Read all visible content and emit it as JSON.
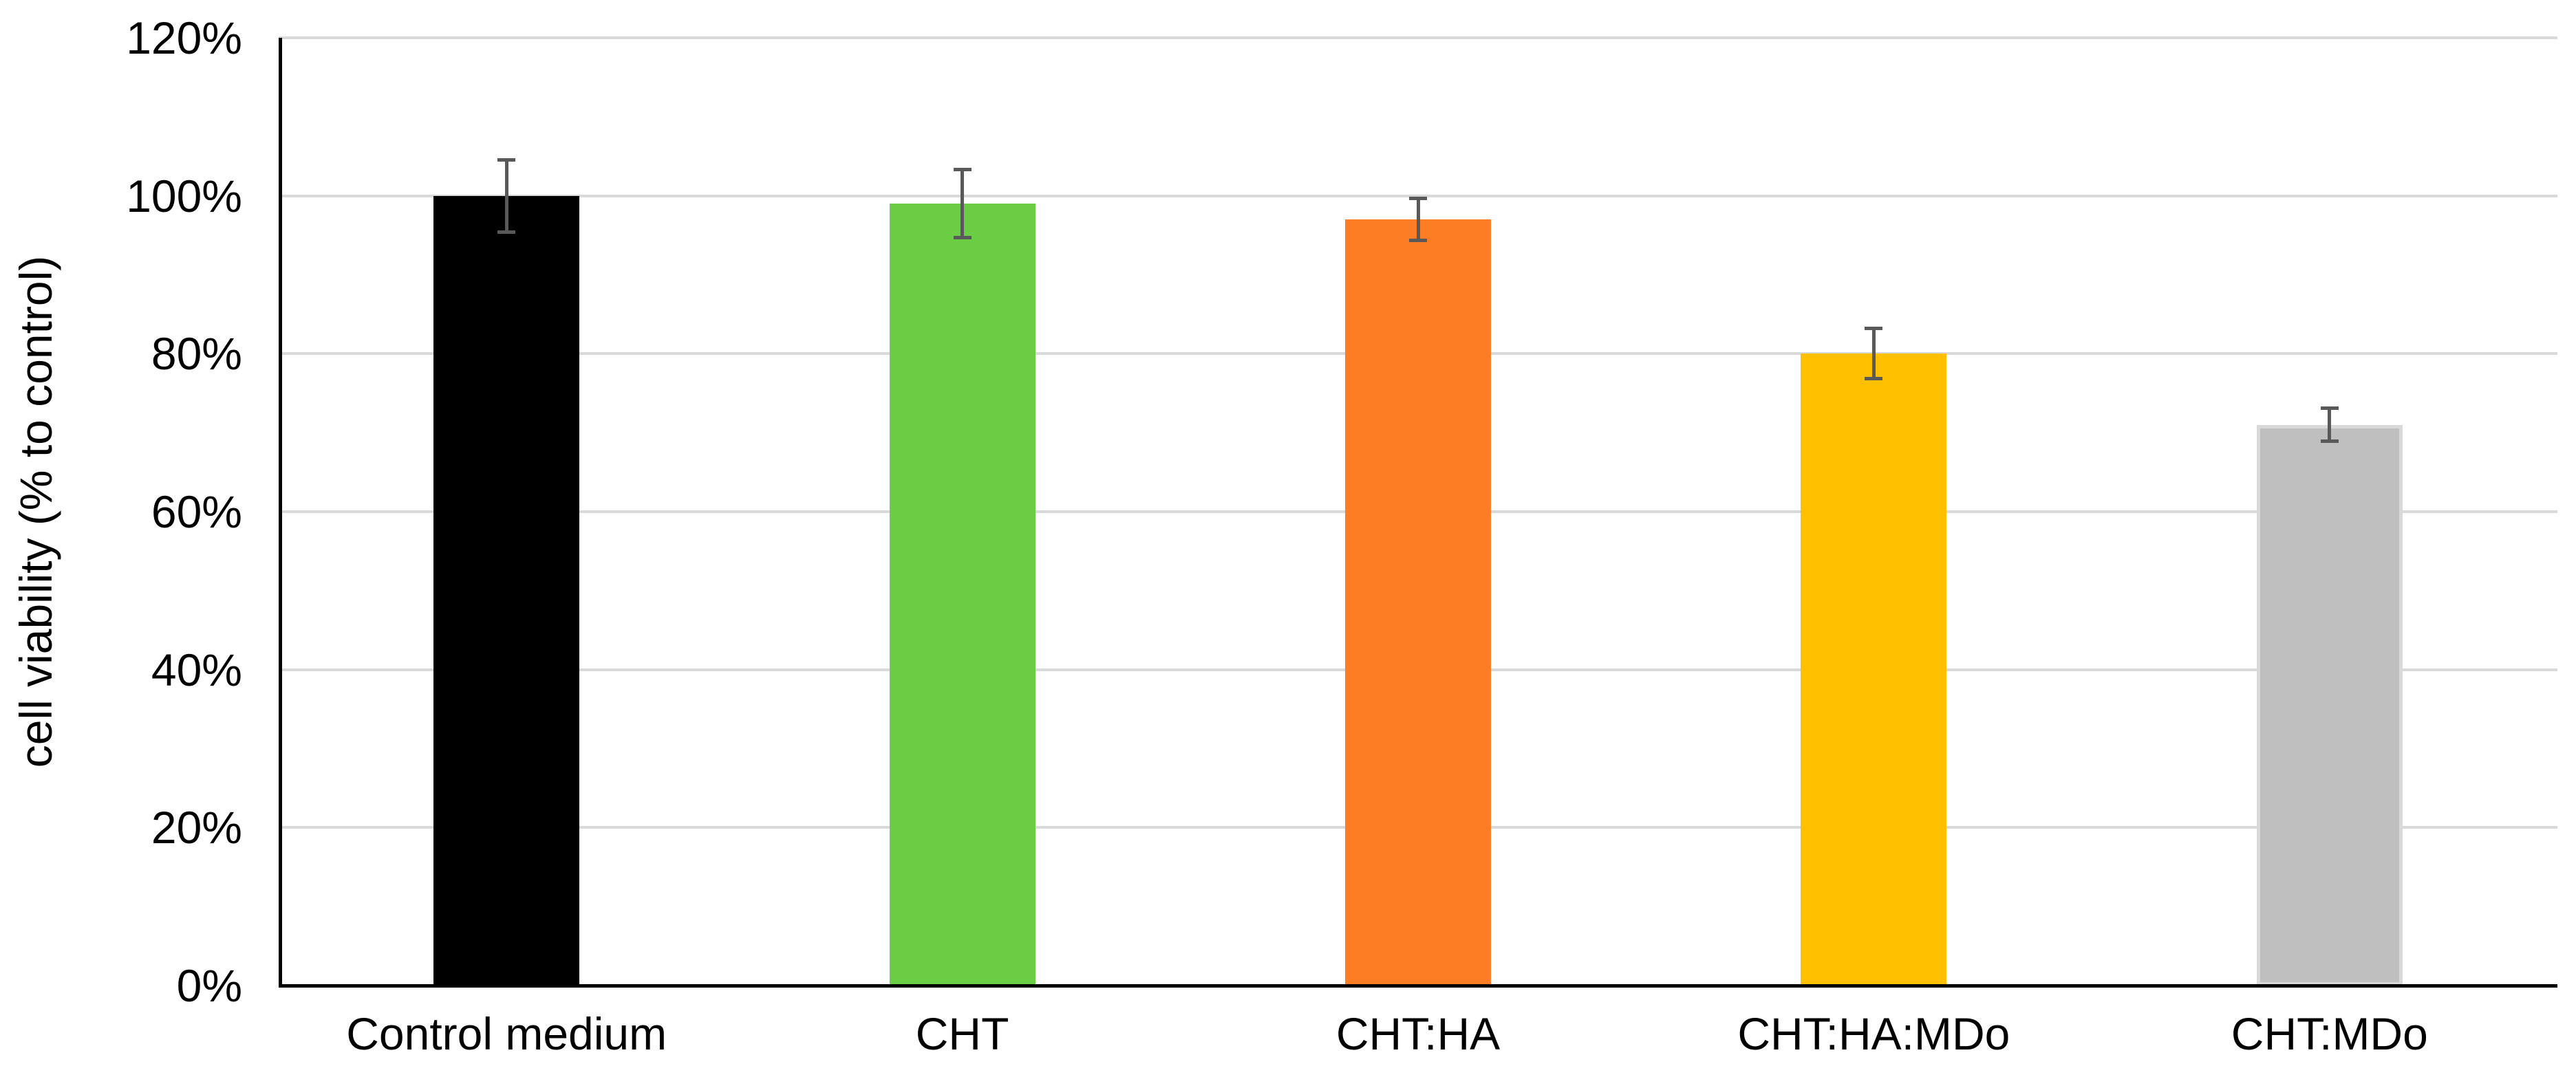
{
  "chart_data": {
    "type": "bar",
    "title": "",
    "xlabel": "",
    "ylabel": "cell viability (% to control)",
    "categories": [
      "Control medium",
      "CHT",
      "CHT:HA",
      "CHT:HA:MDo",
      "CHT:MDo"
    ],
    "values": [
      100,
      99,
      97,
      80,
      71
    ],
    "error_bars": [
      4.8,
      4.5,
      2.9,
      3.4,
      2.3
    ],
    "bar_colors": [
      "#000000",
      "#6BCD43",
      "#FD7D25",
      "#FFC000",
      "#BFBFBF"
    ],
    "bar_border_colors": [
      "#000000",
      "#6BCD43",
      "#FD7D25",
      "#FFC000",
      "#D9D9D9"
    ],
    "ylim": [
      0,
      120
    ],
    "ytick_step": 20,
    "ytick_labels": [
      "0%",
      "20%",
      "40%",
      "60%",
      "80%",
      "100%",
      "120%"
    ],
    "grid": true,
    "legend": "none",
    "gridline_color": "#D9D9D9",
    "axis_color": "#000000",
    "error_bar_color": "#595959",
    "background": "#FFFFFF"
  }
}
